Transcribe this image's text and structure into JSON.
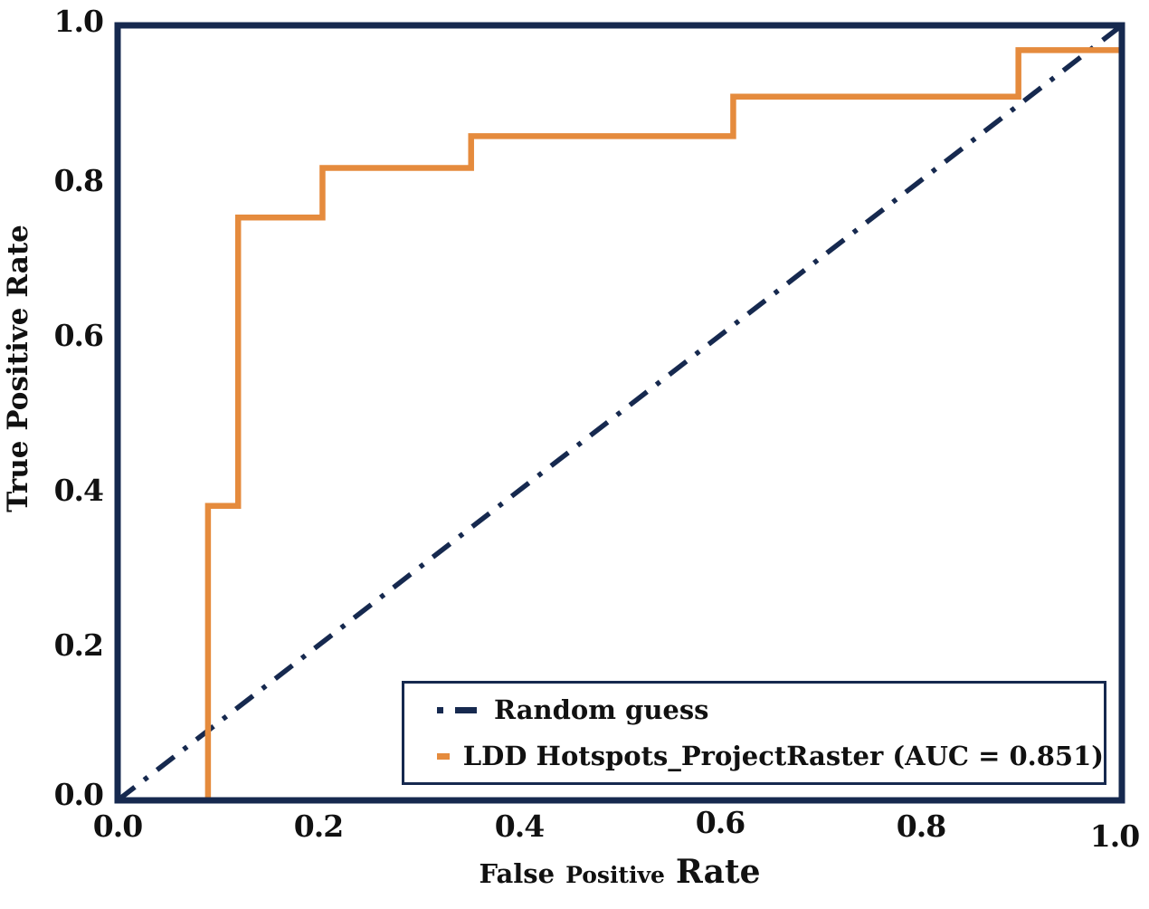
{
  "colors": {
    "navy": "#16294F",
    "orange": "#E58B3D",
    "text": "#111111",
    "background": "#FFFFFF"
  },
  "legend": {
    "items": [
      {
        "label": "Random guess",
        "sample": "dashdot-navy-line"
      },
      {
        "label": "LDD Hotspots_ProjectRaster (AUC = 0.851)",
        "sample": "solid-orange-line"
      }
    ]
  },
  "chart_data": {
    "type": "line",
    "title": "",
    "xlabel": "False Positive Rate",
    "xlabel_words": [
      "False",
      "Positive",
      "Rate"
    ],
    "ylabel": "True Positive Rate",
    "xlim": [
      0.0,
      1.0
    ],
    "ylim": [
      0.0,
      1.0
    ],
    "x_ticks": [
      0.0,
      0.2,
      0.4,
      0.6,
      0.8,
      1.0
    ],
    "x_tick_labels": [
      "0.0",
      "0.2",
      "0.4",
      "0.6",
      "0.8",
      "1.0"
    ],
    "y_ticks": [
      0.0,
      0.2,
      0.4,
      0.6,
      0.8,
      1.0
    ],
    "y_tick_labels": [
      "0.0",
      "0.2",
      "0.4",
      "0.6",
      "0.8",
      "1.0"
    ],
    "grid": false,
    "legend_position": "lower-right-inside",
    "series": [
      {
        "name": "Random guess",
        "type": "line",
        "style": "dashdot",
        "color": "#16294F",
        "points": [
          [
            0.0,
            0.0
          ],
          [
            1.0,
            1.0
          ]
        ]
      },
      {
        "name": "LDD Hotspots_ProjectRaster (AUC = 0.851)",
        "type": "step",
        "style": "solid",
        "color": "#E58B3D",
        "auc": 0.851,
        "points": [
          [
            0.09,
            0.0
          ],
          [
            0.09,
            0.38
          ],
          [
            0.12,
            0.38
          ],
          [
            0.12,
            0.752
          ],
          [
            0.204,
            0.752
          ],
          [
            0.204,
            0.816
          ],
          [
            0.352,
            0.816
          ],
          [
            0.352,
            0.857
          ],
          [
            0.613,
            0.857
          ],
          [
            0.613,
            0.908
          ],
          [
            0.897,
            0.908
          ],
          [
            0.897,
            0.968
          ],
          [
            1.0,
            0.968
          ]
        ]
      }
    ]
  }
}
